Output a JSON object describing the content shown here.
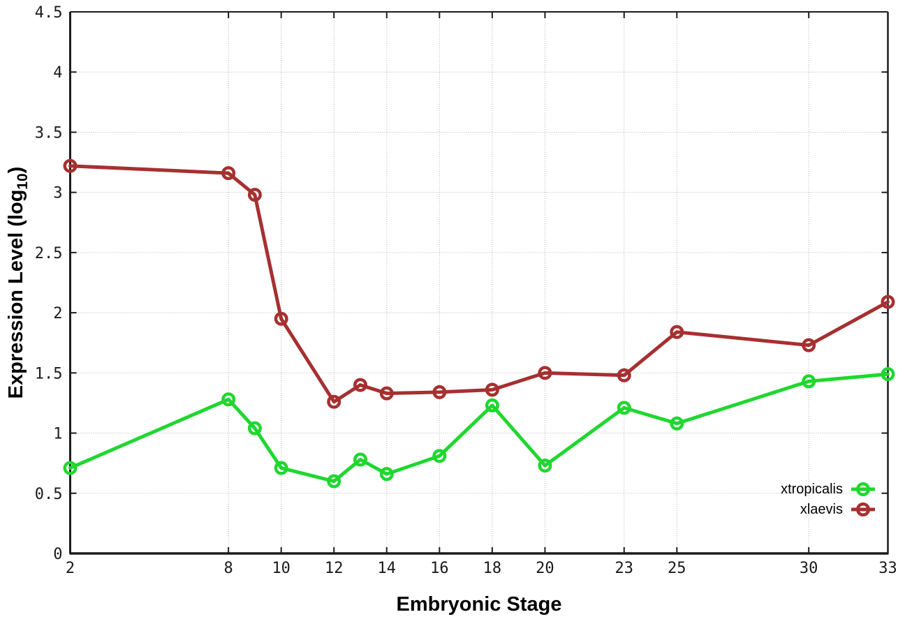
{
  "chart_data": {
    "type": "line",
    "title": "",
    "xlabel": "Embryonic Stage",
    "ylabel": "Expression Level (log10)",
    "ylabel_parts": {
      "main": "Expression Level (log",
      "sub": "10",
      "close": ")"
    },
    "x": [
      2,
      8,
      9,
      10,
      12,
      13,
      14,
      16,
      18,
      20,
      23,
      25,
      30,
      33
    ],
    "series": [
      {
        "name": "xtropicalis",
        "color": "#1fd72f",
        "values": [
          0.71,
          1.28,
          1.04,
          0.71,
          0.6,
          0.78,
          0.66,
          0.81,
          1.23,
          0.73,
          1.21,
          1.08,
          1.43,
          1.49
        ]
      },
      {
        "name": "xlaevis",
        "color": "#a63030",
        "values": [
          3.22,
          3.16,
          2.98,
          1.95,
          1.26,
          1.4,
          1.33,
          1.34,
          1.36,
          1.5,
          1.48,
          1.84,
          1.73,
          2.09
        ]
      }
    ],
    "xlim": [
      2,
      33
    ],
    "ylim": [
      0,
      4.5
    ],
    "xticks": [
      2,
      8,
      10,
      12,
      14,
      16,
      18,
      20,
      23,
      25,
      30,
      33
    ],
    "xtick_labels": [
      "2",
      "8",
      "10",
      "12",
      "14",
      "16",
      "18",
      "20",
      "23",
      "25",
      "30",
      "33"
    ],
    "yticks": [
      0,
      0.5,
      1,
      1.5,
      2,
      2.5,
      3,
      3.5,
      4,
      4.5
    ],
    "ytick_labels": [
      "0",
      "0.5",
      "1",
      "1.5",
      "2",
      "2.5",
      "3",
      "3.5",
      "4",
      "4.5"
    ],
    "grid": true,
    "legend_position": "inside bottom right",
    "marker": "open-circle"
  },
  "colors": {
    "background": "#ffffff",
    "border": "#1c1c1c",
    "grid": "#b5b5b5",
    "text": "#000000",
    "xtropicalis": "#1fd72f",
    "xlaevis": "#a63030"
  }
}
